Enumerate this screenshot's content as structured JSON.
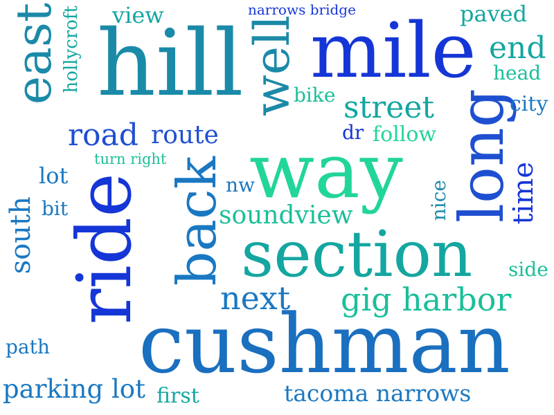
{
  "words": {
    "cushman": "cushman",
    "way": "way",
    "ride": "ride",
    "hill": "hill",
    "mile": "mile",
    "section": "section",
    "long": "long",
    "back": "back",
    "well": "well",
    "east": "east",
    "gig_harbor": "gig harbor",
    "street": "street",
    "next": "next",
    "road": "road",
    "route": "route",
    "soundview": "soundview",
    "tacoma_narrows": "tacoma narrows",
    "parking_lot": "parking lot",
    "end": "end",
    "time": "time",
    "south": "south",
    "paved": "paved",
    "view": "view",
    "city": "city",
    "head": "head",
    "bike": "bike",
    "follow": "follow",
    "dr": "dr",
    "nw": "nw",
    "nice": "nice",
    "hollycroft": "hollycroft",
    "narrows_bridge": "narrows bridge",
    "turn_right": "turn right",
    "lot": "lot",
    "bit": "bit",
    "side": "side",
    "path": "path",
    "first": "first"
  },
  "colors": {
    "deep_blue": "#1536d6",
    "royal_blue": "#1f4fd1",
    "sky_blue": "#1a78c2",
    "steel_teal": "#1b8aa8",
    "teal": "#14a6a0",
    "sea_green": "#1bbf99",
    "mint": "#22d59a"
  }
}
